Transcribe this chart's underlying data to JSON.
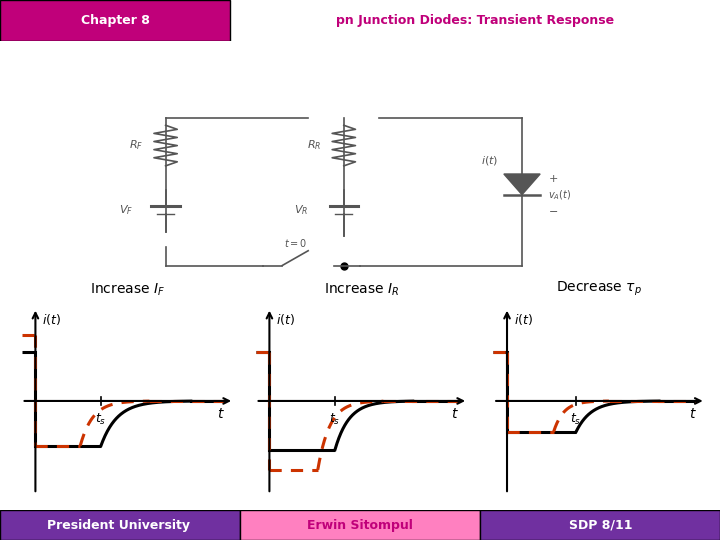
{
  "title_bar_color": "#c0007a",
  "title_bar2_color": "#ff80c0",
  "chapter_text": "Chapter 8",
  "subtitle_text": "pn Junction Diodes: Transient Response",
  "main_title_bg": "#7030a0",
  "footer_left_text": "President University",
  "footer_left_bg": "#7030a0",
  "footer_mid_text": "Erwin Sitompul",
  "footer_mid_bg": "#ff80c0",
  "footer_right_text": "SDP 8/11",
  "footer_right_bg": "#7030a0",
  "bg_color": "#ffffff",
  "solid_color": "#000000",
  "dashed_color": "#cc3300",
  "gray": "#555555"
}
